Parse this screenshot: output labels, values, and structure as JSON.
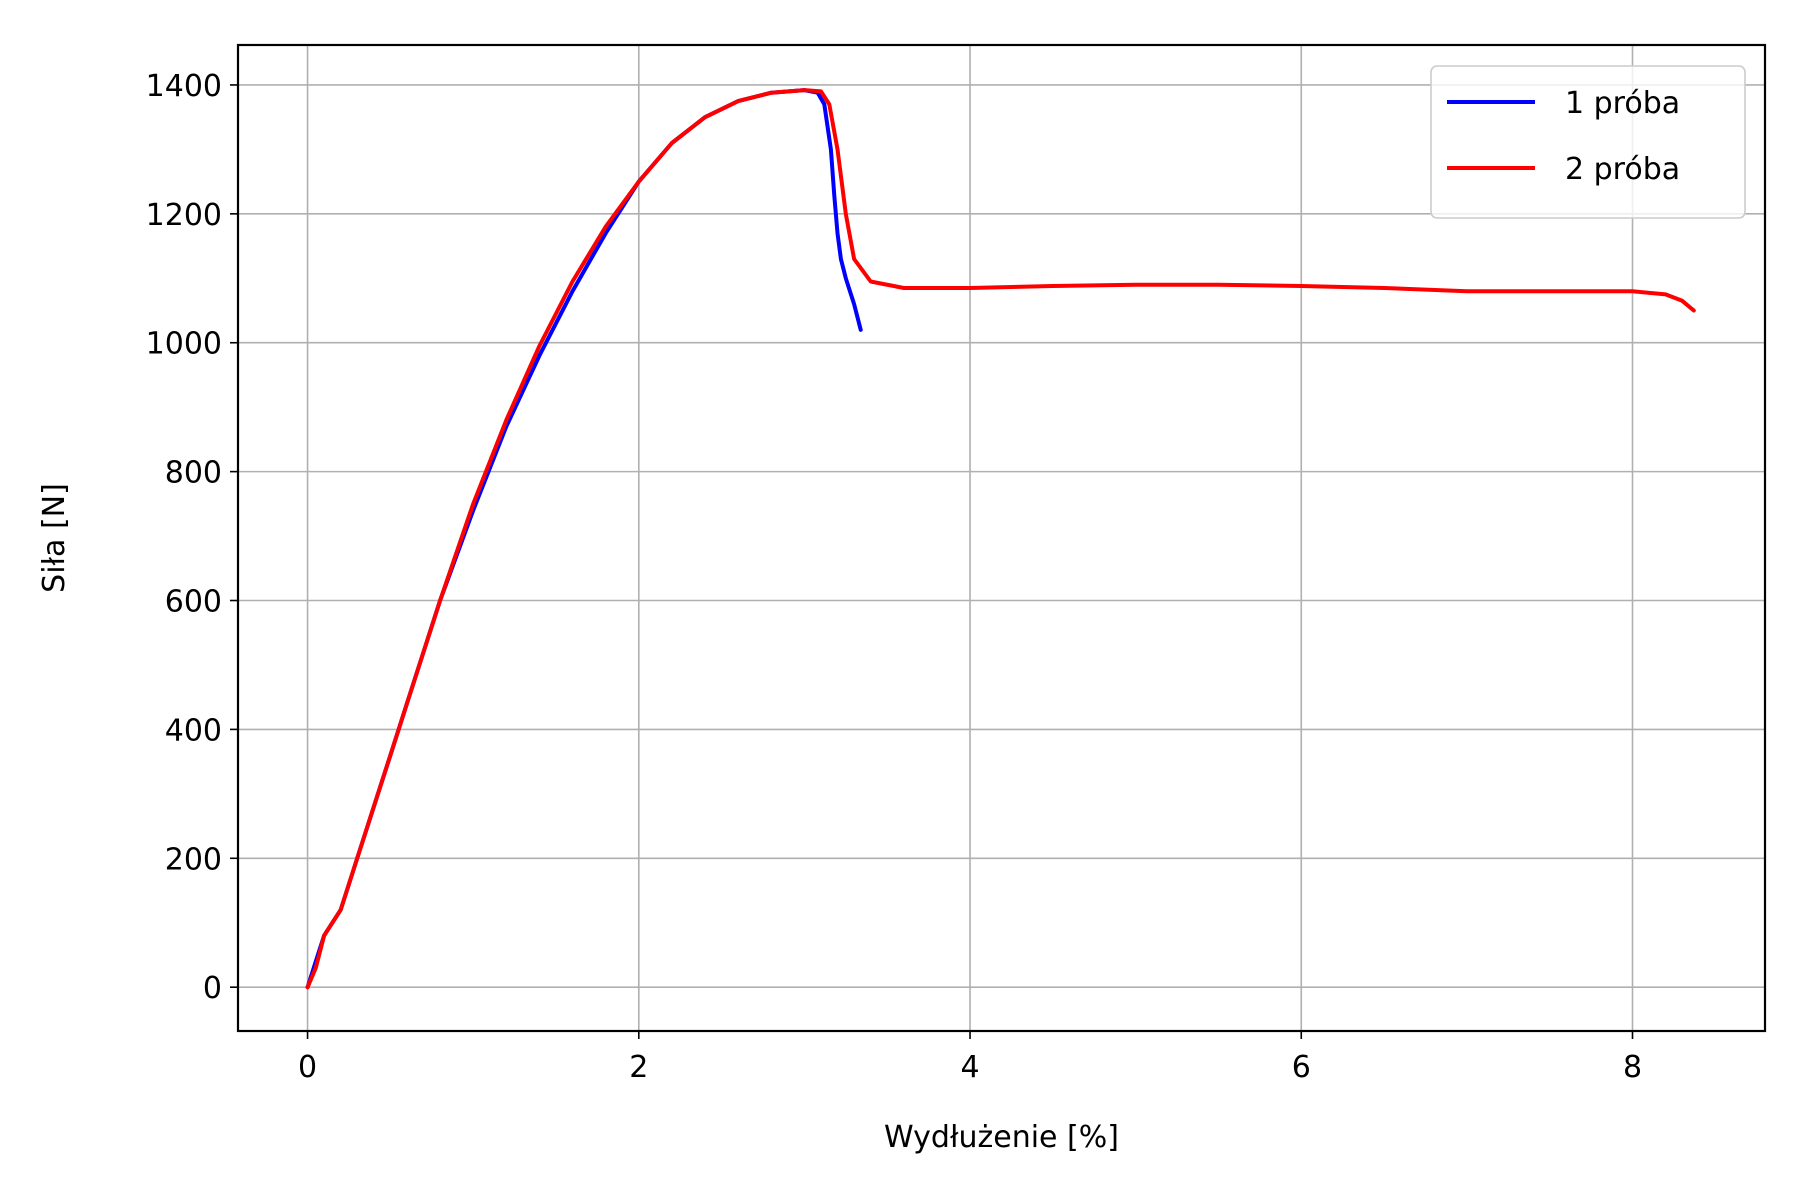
{
  "chart_data": {
    "type": "line",
    "title": "",
    "xlabel": "Wydłużenie [%]",
    "ylabel": "Siła [N]",
    "xlim": [
      -0.42,
      8.8
    ],
    "ylim": [
      -68,
      1462
    ],
    "x_ticks": [
      0,
      2,
      4,
      6,
      8
    ],
    "y_ticks": [
      0,
      200,
      400,
      600,
      800,
      1000,
      1200,
      1400
    ],
    "grid": true,
    "legend_position": "top-right",
    "series": [
      {
        "name": "1 próba",
        "color": "#0000ff",
        "x": [
          0.0,
          0.05,
          0.1,
          0.2,
          0.3,
          0.4,
          0.5,
          0.6,
          0.8,
          1.0,
          1.2,
          1.4,
          1.6,
          1.8,
          2.0,
          2.2,
          2.4,
          2.6,
          2.8,
          3.0,
          3.08,
          3.12,
          3.16,
          3.18,
          3.2,
          3.22,
          3.25,
          3.3,
          3.34
        ],
        "y": [
          0,
          40,
          80,
          120,
          200,
          280,
          360,
          440,
          600,
          740,
          870,
          980,
          1080,
          1170,
          1250,
          1310,
          1350,
          1375,
          1388,
          1392,
          1388,
          1370,
          1300,
          1230,
          1170,
          1130,
          1100,
          1060,
          1020
        ]
      },
      {
        "name": "2 próba",
        "color": "#ff0000",
        "x": [
          0.0,
          0.05,
          0.1,
          0.2,
          0.3,
          0.4,
          0.5,
          0.6,
          0.8,
          1.0,
          1.2,
          1.4,
          1.6,
          1.8,
          2.0,
          2.2,
          2.4,
          2.6,
          2.8,
          3.0,
          3.1,
          3.15,
          3.2,
          3.25,
          3.3,
          3.4,
          3.6,
          4.0,
          4.5,
          5.0,
          5.5,
          6.0,
          6.5,
          7.0,
          7.5,
          8.0,
          8.2,
          8.3,
          8.37
        ],
        "y": [
          0,
          30,
          80,
          120,
          200,
          280,
          360,
          440,
          600,
          750,
          880,
          995,
          1095,
          1180,
          1250,
          1310,
          1350,
          1375,
          1388,
          1392,
          1390,
          1370,
          1300,
          1200,
          1130,
          1095,
          1085,
          1085,
          1088,
          1090,
          1090,
          1088,
          1085,
          1080,
          1080,
          1080,
          1075,
          1065,
          1050
        ]
      }
    ]
  }
}
